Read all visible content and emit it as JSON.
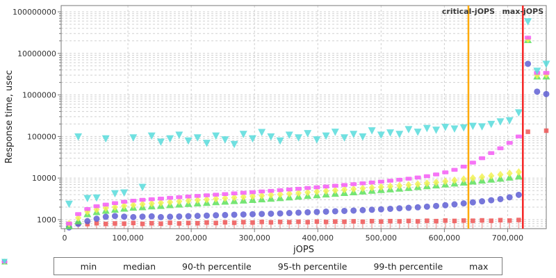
{
  "figure": {
    "background": "#ffffff"
  },
  "chart_data": {
    "type": "scatter",
    "title": "",
    "xlabel": "jOPS",
    "ylabel": "Response time, usec",
    "x_axis": {
      "min": 0,
      "max": 761000,
      "ticks": [
        0,
        100000,
        200000,
        300000,
        400000,
        500000,
        600000,
        700000
      ],
      "tick_labels": [
        "0",
        "100,000",
        "200,000",
        "300,000",
        "400,000",
        "500,000",
        "600,000",
        "700,000"
      ]
    },
    "y_axis": {
      "scale": "log",
      "min": 620,
      "max": 140000000,
      "ticks": [
        1000,
        10000,
        100000,
        1000000,
        10000000,
        100000000
      ],
      "tick_labels": [
        "1000",
        "10000",
        "100000",
        "1000000",
        "10000000",
        "100000000"
      ]
    },
    "grid": {
      "color": "#d0d0d0",
      "style": "dashed"
    },
    "legend_position": "bottom",
    "annotations": [
      {
        "label": "critical-jOPS",
        "x": 638000,
        "color": "#ffaa00"
      },
      {
        "label": "max-jOPS",
        "x": 724000,
        "color": "#f52222"
      }
    ],
    "x": [
      7000,
      21500,
      36000,
      50500,
      65000,
      79500,
      94000,
      108500,
      123000,
      137500,
      152000,
      166500,
      181000,
      195500,
      210000,
      224500,
      239000,
      253500,
      268000,
      282500,
      297000,
      311500,
      326000,
      340500,
      355000,
      369500,
      384000,
      398500,
      413000,
      427500,
      442000,
      456500,
      471000,
      485500,
      500000,
      514500,
      529000,
      543500,
      558000,
      572500,
      587000,
      601500,
      616000,
      630500,
      645000,
      659500,
      674000,
      688500,
      703000,
      717500,
      732000,
      746500,
      761000
    ],
    "series": [
      {
        "name": "min",
        "marker": "square",
        "color": "#ee5555",
        "stem": true,
        "stem_color": "#f4b0ad",
        "values": [
          760,
          800,
          780,
          820,
          790,
          810,
          800,
          830,
          790,
          820,
          800,
          840,
          810,
          830,
          820,
          850,
          830,
          860,
          840,
          870,
          850,
          880,
          860,
          880,
          870,
          890,
          870,
          900,
          880,
          900,
          890,
          910,
          890,
          920,
          900,
          920,
          910,
          930,
          910,
          940,
          920,
          950,
          930,
          950,
          940,
          960,
          940,
          970,
          950,
          980,
          130000,
          null,
          138000
        ]
      },
      {
        "name": "median",
        "marker": "circle",
        "color": "#5f5fd3",
        "values": [
          650,
          790,
          920,
          1050,
          1170,
          1220,
          1180,
          1150,
          1180,
          1200,
          1150,
          1170,
          1190,
          1210,
          1230,
          1250,
          1270,
          1290,
          1310,
          1330,
          1350,
          1370,
          1390,
          1410,
          1440,
          1470,
          1500,
          1530,
          1560,
          1590,
          1620,
          1650,
          1690,
          1730,
          1770,
          1820,
          1870,
          1920,
          1980,
          2050,
          2130,
          2220,
          2330,
          2460,
          2600,
          2760,
          2930,
          3120,
          3450,
          3950,
          5600000,
          1200000,
          1050000
        ]
      },
      {
        "name": "90-th percentile",
        "marker": "triangle-up",
        "color": "#5de05d",
        "values": [
          700,
          920,
          1360,
          1530,
          1650,
          1750,
          1850,
          1950,
          2000,
          2100,
          2150,
          2250,
          2320,
          2400,
          2470,
          2550,
          2640,
          2720,
          2810,
          2900,
          3000,
          3100,
          3200,
          3310,
          3450,
          3600,
          3740,
          3890,
          4050,
          4220,
          4400,
          4580,
          4780,
          4980,
          5180,
          5390,
          5600,
          5830,
          6100,
          6400,
          6700,
          7050,
          7450,
          7850,
          8300,
          8750,
          9250,
          9750,
          10300,
          11000,
          21000000,
          2800000,
          2800000
        ]
      },
      {
        "name": "95-th percentile",
        "marker": "diamond",
        "color": "#f2f255",
        "values": [
          800,
          1100,
          1550,
          1750,
          1900,
          2000,
          2150,
          2250,
          2350,
          2450,
          2550,
          2650,
          2750,
          2850,
          2950,
          3060,
          3170,
          3280,
          3400,
          3520,
          3650,
          3780,
          3920,
          4060,
          4210,
          4370,
          4530,
          4700,
          4880,
          5060,
          5250,
          5450,
          5660,
          5880,
          6100,
          6340,
          6580,
          6840,
          7150,
          7500,
          7900,
          8350,
          8850,
          9400,
          10000,
          10600,
          11300,
          12100,
          13000,
          14000,
          22000000,
          3000000,
          3100000
        ]
      },
      {
        "name": "99-th percentile",
        "marker": "hbar",
        "color": "#f55cf5",
        "values": [
          800,
          1360,
          1800,
          2100,
          2300,
          2500,
          2700,
          2850,
          3000,
          3100,
          3200,
          3350,
          3470,
          3600,
          3720,
          3850,
          3980,
          4120,
          4270,
          4420,
          4580,
          4750,
          4930,
          5120,
          5320,
          5530,
          5760,
          6000,
          6260,
          6530,
          6820,
          7130,
          7460,
          7820,
          8200,
          8620,
          9100,
          9650,
          10300,
          11100,
          12200,
          13700,
          15800,
          18800,
          23500,
          30000,
          40000,
          52000,
          70000,
          100000,
          24000000,
          3400000,
          3400000
        ]
      },
      {
        "name": "max",
        "marker": "triangle-down",
        "color": "#58dcdc",
        "values": [
          2400,
          100000,
          3300,
          3400,
          90000,
          4300,
          4500,
          95000,
          6100,
          105000,
          75000,
          90000,
          110000,
          80000,
          95000,
          70000,
          105000,
          85000,
          66000,
          115000,
          90000,
          128000,
          100000,
          80000,
          110000,
          95000,
          120000,
          85000,
          105000,
          130000,
          95000,
          115000,
          100000,
          140000,
          110000,
          125000,
          115000,
          150000,
          130000,
          160000,
          145000,
          170000,
          155000,
          165000,
          180000,
          175000,
          200000,
          230000,
          245000,
          380000,
          59000000,
          3800000,
          5600000
        ]
      }
    ]
  }
}
